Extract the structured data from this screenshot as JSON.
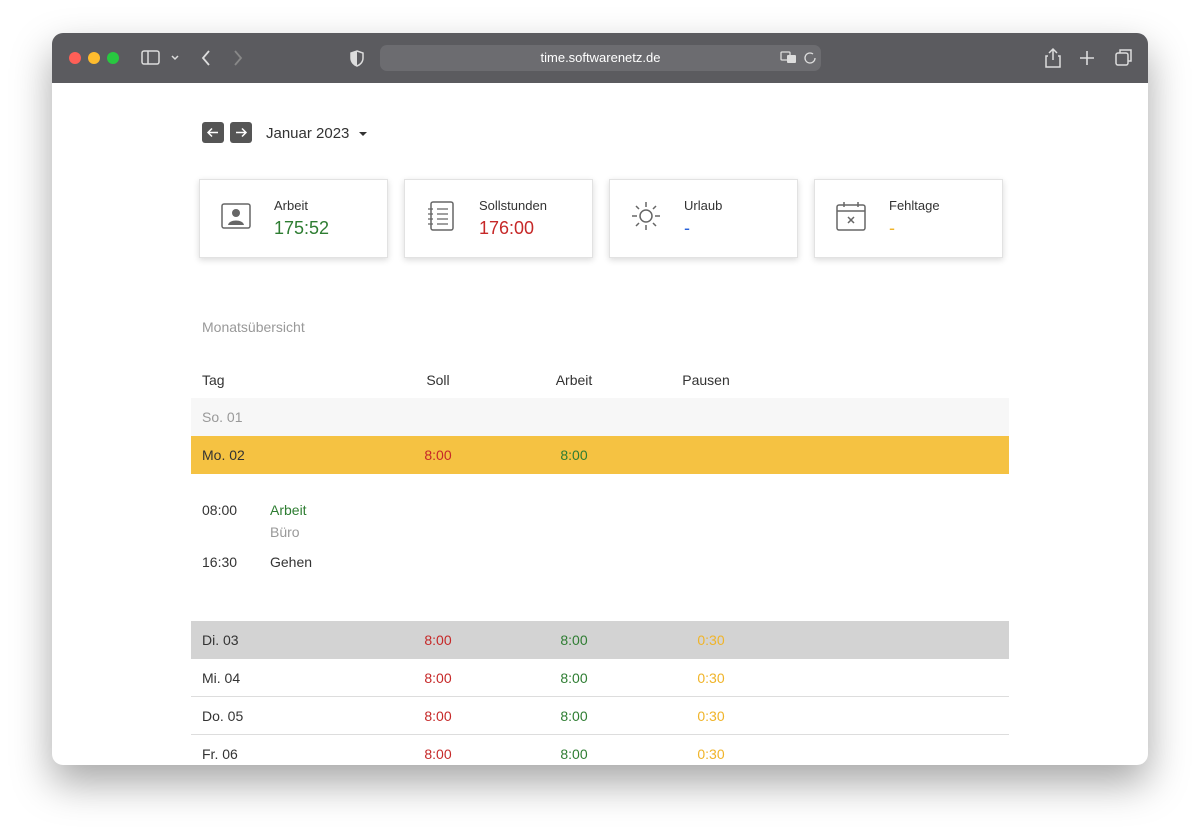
{
  "browser": {
    "url": "time.softwarenetz.de"
  },
  "month": "Januar 2023",
  "cards": [
    {
      "label": "Arbeit",
      "value": "175:52"
    },
    {
      "label": "Sollstunden",
      "value": "176:00"
    },
    {
      "label": "Urlaub",
      "value": "-"
    },
    {
      "label": "Fehltage",
      "value": "-"
    }
  ],
  "section_title": "Monatsübersicht",
  "table": {
    "headers": [
      "Tag",
      "Soll",
      "Arbeit",
      "Pausen"
    ],
    "rows": [
      {
        "day": "So. 01"
      },
      {
        "day": "Mo. 02",
        "soll": "8:00",
        "arbeit": "8:00"
      },
      {
        "day": "Di. 03",
        "soll": "8:00",
        "arbeit": "8:00",
        "pausen": "0:30"
      },
      {
        "day": "Mi. 04",
        "soll": "8:00",
        "arbeit": "8:00",
        "pausen": "0:30"
      },
      {
        "day": "Do. 05",
        "soll": "8:00",
        "arbeit": "8:00",
        "pausen": "0:30"
      },
      {
        "day": "Fr. 06",
        "soll": "8:00",
        "arbeit": "8:00",
        "pausen": "0:30"
      }
    ]
  },
  "details": [
    {
      "time": "08:00",
      "label": "Arbeit",
      "sub": "Büro"
    },
    {
      "time": "16:30",
      "label": "Gehen"
    }
  ]
}
